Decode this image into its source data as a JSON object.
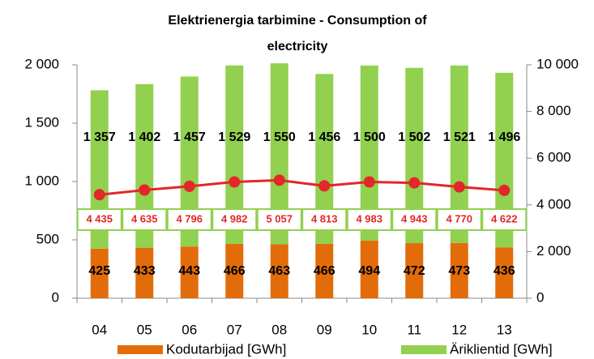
{
  "chart_data": {
    "type": "bar",
    "stacked": true,
    "title": [
      "Elektrienergia tarbimine - Consumption of",
      "electricity"
    ],
    "categories": [
      "04",
      "05",
      "06",
      "07",
      "08",
      "09",
      "10",
      "11",
      "12",
      "13"
    ],
    "series": [
      {
        "name": "Kodutarbijad [GWh]",
        "color": "#e36c0a",
        "values": [
          425,
          433,
          443,
          466,
          463,
          466,
          494,
          472,
          473,
          436
        ]
      },
      {
        "name": "Äriklientid [GWh]",
        "color": "#92d050",
        "values": [
          1357,
          1402,
          1457,
          1529,
          1550,
          1456,
          1500,
          1502,
          1521,
          1496
        ],
        "value_labels": [
          "1 357",
          "1 402",
          "1 457",
          "1 529",
          "1 550",
          "1 456",
          "1 500",
          "1 502",
          "1 521",
          "1 496"
        ]
      },
      {
        "type": "line",
        "axis": "y2",
        "color": "#e3262a",
        "values": [
          4435,
          4635,
          4796,
          4982,
          5057,
          4813,
          4983,
          4943,
          4770,
          4622
        ],
        "value_labels": [
          "4 435",
          "4 635",
          "4 796",
          "4 982",
          "5 057",
          "4 813",
          "4 983",
          "4 943",
          "4 770",
          "4 622"
        ]
      }
    ],
    "ylim": [
      0,
      2000
    ],
    "yticks": [
      0,
      500,
      {
        "value": 1000,
        "label": "1 000"
      },
      {
        "value": 1500,
        "label": "1 500"
      },
      {
        "value": 2000,
        "label": "2 000"
      }
    ],
    "y2lim": [
      0,
      10000
    ],
    "y2ticks": [
      0,
      {
        "value": 2000,
        "label": "2 000"
      },
      {
        "value": 4000,
        "label": "4 000"
      },
      {
        "value": 6000,
        "label": "6 000"
      },
      {
        "value": 8000,
        "label": "8 000"
      },
      {
        "value": 10000,
        "label": "10 000"
      }
    ],
    "grid": false,
    "legend": "bottom"
  }
}
